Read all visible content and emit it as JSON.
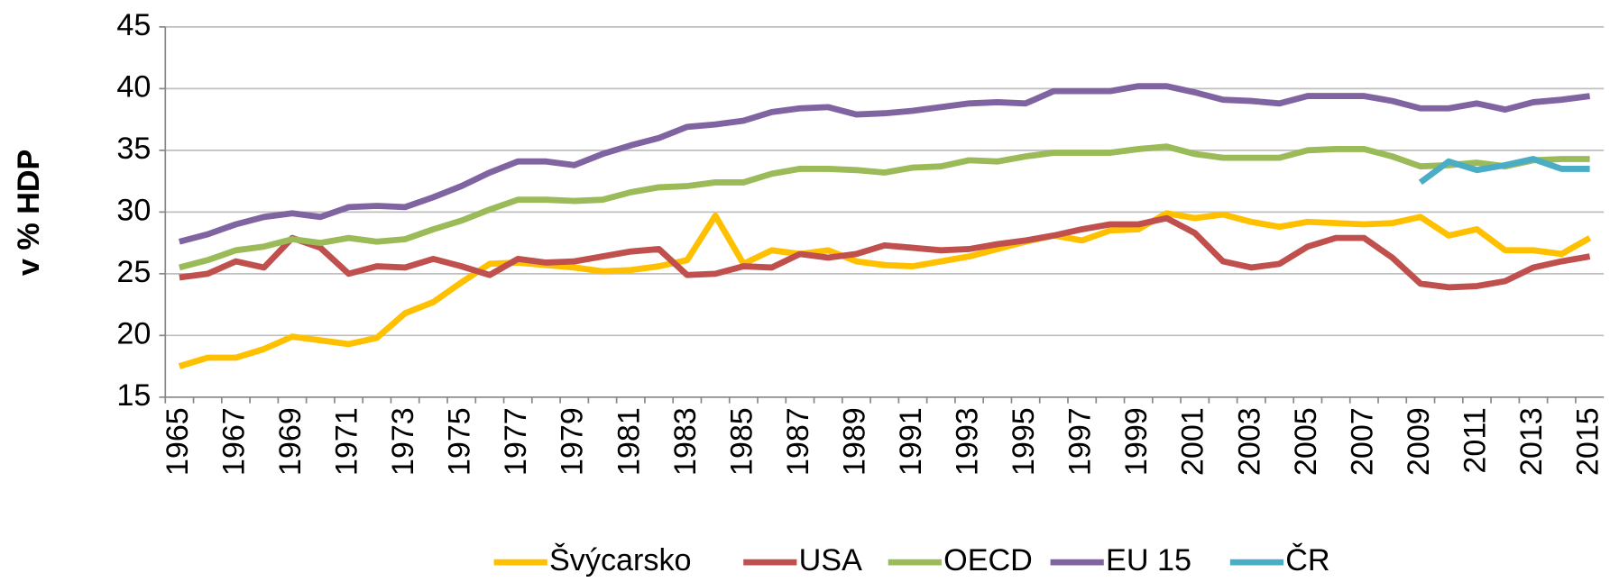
{
  "chart_data": {
    "type": "line",
    "y_label": "v % HDP",
    "categories": [
      "1965",
      null,
      "1967",
      null,
      "1969",
      null,
      "1971",
      null,
      "1973",
      null,
      "1975",
      null,
      "1977",
      null,
      "1979",
      null,
      "1981",
      null,
      "1983",
      null,
      "1985",
      null,
      "1987",
      null,
      "1989",
      null,
      "1991",
      null,
      "1993",
      null,
      "1995",
      null,
      "1997",
      null,
      "1999",
      null,
      "2001",
      null,
      "2003",
      null,
      "2005",
      null,
      "2007",
      null,
      "2009",
      null,
      "2011",
      null,
      "2013",
      null,
      "2015"
    ],
    "ylim": [
      15,
      45
    ],
    "yticks": [
      15,
      20,
      25,
      30,
      35,
      40,
      45
    ],
    "grid": true,
    "legend": "bottom",
    "series": [
      {
        "name": "Švýcarsko",
        "color": "#ffc000",
        "values": [
          17.5,
          18.2,
          18.2,
          18.9,
          19.9,
          19.6,
          19.3,
          19.8,
          21.8,
          22.7,
          24.3,
          25.8,
          25.9,
          25.7,
          25.5,
          25.2,
          25.3,
          25.6,
          26.1,
          29.7,
          25.8,
          26.9,
          26.6,
          26.9,
          26.0,
          25.7,
          25.6,
          26.0,
          26.4,
          27.0,
          27.6,
          28.1,
          27.7,
          28.5,
          28.6,
          29.9,
          29.5,
          29.8,
          29.2,
          28.8,
          29.2,
          29.1,
          29.0,
          29.1,
          29.6,
          28.1,
          28.6,
          26.9,
          26.9,
          26.6,
          27.9
        ]
      },
      {
        "name": "USA",
        "color": "#c0504d",
        "values": [
          24.7,
          25.0,
          26.0,
          25.5,
          27.9,
          27.1,
          25.0,
          25.6,
          25.5,
          26.2,
          25.6,
          24.9,
          26.2,
          25.9,
          26.0,
          26.4,
          26.8,
          27.0,
          24.9,
          25.0,
          25.6,
          25.5,
          26.6,
          26.3,
          26.6,
          27.3,
          27.1,
          26.9,
          27.0,
          27.4,
          27.7,
          28.1,
          28.6,
          29.0,
          29.0,
          29.5,
          28.3,
          26.0,
          25.5,
          25.8,
          27.2,
          27.9,
          27.9,
          26.3,
          24.2,
          23.9,
          24.0,
          24.4,
          25.5,
          26.0,
          26.4
        ]
      },
      {
        "name": "OECD",
        "color": "#9bbb59",
        "values": [
          25.5,
          26.1,
          26.9,
          27.2,
          27.8,
          27.5,
          27.9,
          27.6,
          27.8,
          28.6,
          29.3,
          30.2,
          31.0,
          31.0,
          30.9,
          31.0,
          31.6,
          32.0,
          32.1,
          32.4,
          32.4,
          33.1,
          33.5,
          33.5,
          33.4,
          33.2,
          33.6,
          33.7,
          34.2,
          34.1,
          34.5,
          34.8,
          34.8,
          34.8,
          35.1,
          35.3,
          34.7,
          34.4,
          34.4,
          34.4,
          35.0,
          35.1,
          35.1,
          34.5,
          33.7,
          33.8,
          34.0,
          33.7,
          34.2,
          34.3,
          34.3
        ]
      },
      {
        "name": "EU 15",
        "color": "#8064a2",
        "values": [
          27.6,
          28.2,
          29.0,
          29.6,
          29.9,
          29.6,
          30.4,
          30.5,
          30.4,
          31.2,
          32.1,
          33.2,
          34.1,
          34.1,
          33.8,
          34.7,
          35.4,
          36.0,
          36.9,
          37.1,
          37.4,
          38.1,
          38.4,
          38.5,
          37.9,
          38.0,
          38.2,
          38.5,
          38.8,
          38.9,
          38.8,
          39.8,
          39.8,
          39.8,
          40.2,
          40.2,
          39.7,
          39.1,
          39.0,
          38.8,
          39.4,
          39.4,
          39.4,
          39.0,
          38.4,
          38.4,
          38.8,
          38.3,
          38.9,
          39.1,
          39.4
        ]
      },
      {
        "name": "ČR",
        "color": "#4bacc6",
        "values": [
          null,
          null,
          null,
          null,
          null,
          null,
          null,
          null,
          null,
          null,
          null,
          null,
          null,
          null,
          null,
          null,
          null,
          null,
          null,
          null,
          null,
          null,
          null,
          null,
          null,
          null,
          null,
          null,
          null,
          null,
          null,
          null,
          null,
          null,
          null,
          null,
          null,
          null,
          null,
          null,
          null,
          null,
          null,
          null,
          32.4,
          34.1,
          33.4,
          33.8,
          34.3,
          33.5,
          33.5
        ]
      }
    ]
  }
}
